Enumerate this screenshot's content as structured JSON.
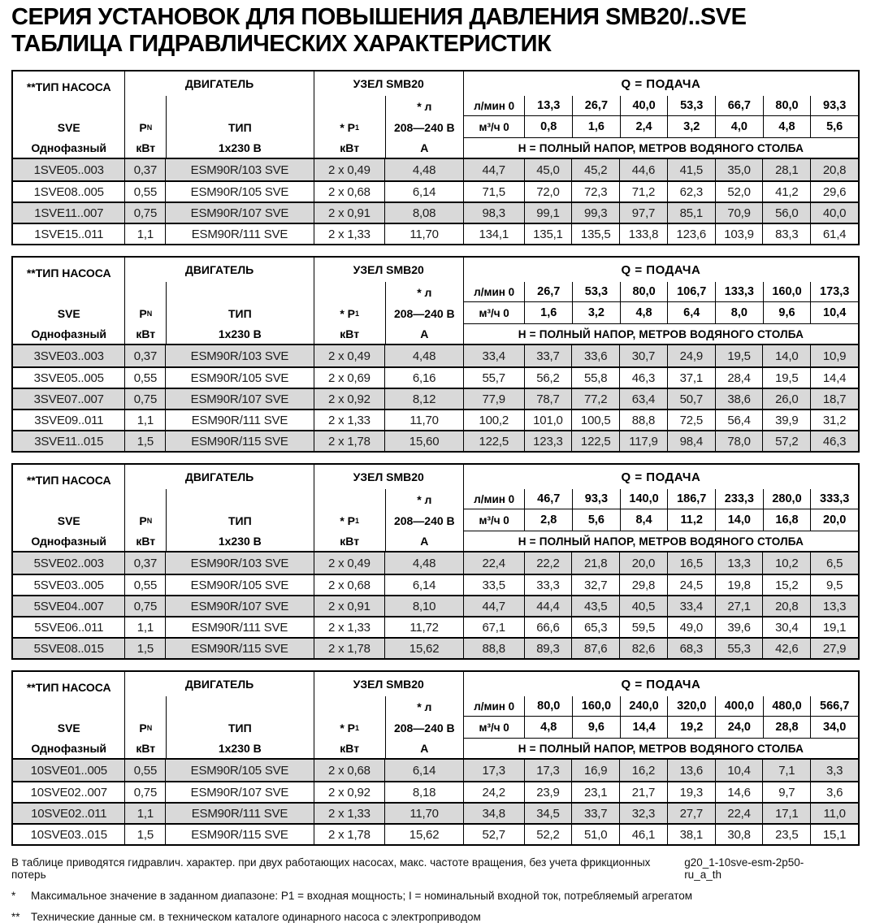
{
  "title": {
    "line1": "СЕРИЯ УСТАНОВОК ДЛЯ ПОВЫШЕНИЯ ДАВЛЕНИЯ SMB20/..SVE",
    "line2": "ТАБЛИЦА ГИДРАВЛИЧЕСКИХ ХАРАКТЕРИСТИК"
  },
  "header_labels": {
    "pump_type": "**ТИП НАСОСА",
    "sve": "SVE",
    "single_phase": "Однофазный",
    "motor": "ДВИГАТЕЛЬ",
    "pn_base": "P",
    "pn_sub": "N",
    "kw": "кВт",
    "type": "ТИП",
    "voltage": "1x230  В",
    "smb20": "УЗЕЛ SMB20",
    "p1_base": "* P",
    "p1_sub": "1",
    "current": "* л",
    "voltage_range": "208—240  В",
    "amps": "А",
    "q_title": "Q  = ПОДАЧА",
    "lmin": "л/мин 0",
    "m3h": "м³/ч 0",
    "head_note": "Н  = ПОЛНЫЙ НАПОР, МЕТРОВ ВОДЯНОГО СТОЛБА"
  },
  "tables": [
    {
      "q_lmin": [
        "13,3",
        "26,7",
        "40,0",
        "53,3",
        "66,7",
        "80,0",
        "93,3"
      ],
      "q_m3h": [
        "0,8",
        "1,6",
        "2,4",
        "3,2",
        "4,0",
        "4,8",
        "5,6"
      ],
      "rows": [
        {
          "model": "1SVE05..003",
          "pn": "0,37",
          "motor_type": "ESM90R/103 SVE",
          "p1": "2 x 0,49",
          "amps": "4,48",
          "h": [
            "44,7",
            "45,0",
            "45,2",
            "44,6",
            "41,5",
            "35,0",
            "28,1",
            "20,8"
          ]
        },
        {
          "model": "1SVE08..005",
          "pn": "0,55",
          "motor_type": "ESM90R/105 SVE",
          "p1": "2 x 0,68",
          "amps": "6,14",
          "h": [
            "71,5",
            "72,0",
            "72,3",
            "71,2",
            "62,3",
            "52,0",
            "41,2",
            "29,6"
          ]
        },
        {
          "model": "1SVE11..007",
          "pn": "0,75",
          "motor_type": "ESM90R/107 SVE",
          "p1": "2 x 0,91",
          "amps": "8,08",
          "h": [
            "98,3",
            "99,1",
            "99,3",
            "97,7",
            "85,1",
            "70,9",
            "56,0",
            "40,0"
          ]
        },
        {
          "model": "1SVE15..011",
          "pn": "1,1",
          "motor_type": "ESM90R/111 SVE",
          "p1": "2 x 1,33",
          "amps": "11,70",
          "h": [
            "134,1",
            "135,1",
            "135,5",
            "133,8",
            "123,6",
            "103,9",
            "83,3",
            "61,4"
          ]
        }
      ]
    },
    {
      "q_lmin": [
        "26,7",
        "53,3",
        "80,0",
        "106,7",
        "133,3",
        "160,0",
        "173,3"
      ],
      "q_m3h": [
        "1,6",
        "3,2",
        "4,8",
        "6,4",
        "8,0",
        "9,6",
        "10,4"
      ],
      "rows": [
        {
          "model": "3SVE03..003",
          "pn": "0,37",
          "motor_type": "ESM90R/103 SVE",
          "p1": "2 x 0,49",
          "amps": "4,48",
          "h": [
            "33,4",
            "33,7",
            "33,6",
            "30,7",
            "24,9",
            "19,5",
            "14,0",
            "10,9"
          ]
        },
        {
          "model": "3SVE05..005",
          "pn": "0,55",
          "motor_type": "ESM90R/105 SVE",
          "p1": "2 x 0,69",
          "amps": "6,16",
          "h": [
            "55,7",
            "56,2",
            "55,8",
            "46,3",
            "37,1",
            "28,4",
            "19,5",
            "14,4"
          ]
        },
        {
          "model": "3SVE07..007",
          "pn": "0,75",
          "motor_type": "ESM90R/107 SVE",
          "p1": "2 x 0,92",
          "amps": "8,12",
          "h": [
            "77,9",
            "78,7",
            "77,2",
            "63,4",
            "50,7",
            "38,6",
            "26,0",
            "18,7"
          ]
        },
        {
          "model": "3SVE09..011",
          "pn": "1,1",
          "motor_type": "ESM90R/111 SVE",
          "p1": "2 x 1,33",
          "amps": "11,70",
          "h": [
            "100,2",
            "101,0",
            "100,5",
            "88,8",
            "72,5",
            "56,4",
            "39,9",
            "31,2"
          ]
        },
        {
          "model": "3SVE11..015",
          "pn": "1,5",
          "motor_type": "ESM90R/115 SVE",
          "p1": "2 x 1,78",
          "amps": "15,60",
          "h": [
            "122,5",
            "123,3",
            "122,5",
            "117,9",
            "98,4",
            "78,0",
            "57,2",
            "46,3"
          ]
        }
      ]
    },
    {
      "q_lmin": [
        "46,7",
        "93,3",
        "140,0",
        "186,7",
        "233,3",
        "280,0",
        "333,3"
      ],
      "q_m3h": [
        "2,8",
        "5,6",
        "8,4",
        "11,2",
        "14,0",
        "16,8",
        "20,0"
      ],
      "rows": [
        {
          "model": "5SVE02..003",
          "pn": "0,37",
          "motor_type": "ESM90R/103 SVE",
          "p1": "2 x 0,49",
          "amps": "4,48",
          "h": [
            "22,4",
            "22,2",
            "21,8",
            "20,0",
            "16,5",
            "13,3",
            "10,2",
            "6,5"
          ]
        },
        {
          "model": "5SVE03..005",
          "pn": "0,55",
          "motor_type": "ESM90R/105 SVE",
          "p1": "2 x 0,68",
          "amps": "6,14",
          "h": [
            "33,5",
            "33,3",
            "32,7",
            "29,8",
            "24,5",
            "19,8",
            "15,2",
            "9,5"
          ]
        },
        {
          "model": "5SVE04..007",
          "pn": "0,75",
          "motor_type": "ESM90R/107 SVE",
          "p1": "2 x 0,91",
          "amps": "8,10",
          "h": [
            "44,7",
            "44,4",
            "43,5",
            "40,5",
            "33,4",
            "27,1",
            "20,8",
            "13,3"
          ]
        },
        {
          "model": "5SVE06..011",
          "pn": "1,1",
          "motor_type": "ESM90R/111 SVE",
          "p1": "2 x 1,33",
          "amps": "11,72",
          "h": [
            "67,1",
            "66,6",
            "65,3",
            "59,5",
            "49,0",
            "39,6",
            "30,4",
            "19,1"
          ]
        },
        {
          "model": "5SVE08..015",
          "pn": "1,5",
          "motor_type": "ESM90R/115 SVE",
          "p1": "2 x 1,78",
          "amps": "15,62",
          "h": [
            "88,8",
            "89,3",
            "87,6",
            "82,6",
            "68,3",
            "55,3",
            "42,6",
            "27,9"
          ]
        }
      ]
    },
    {
      "q_lmin": [
        "80,0",
        "160,0",
        "240,0",
        "320,0",
        "400,0",
        "480,0",
        "566,7"
      ],
      "q_m3h": [
        "4,8",
        "9,6",
        "14,4",
        "19,2",
        "24,0",
        "28,8",
        "34,0"
      ],
      "rows": [
        {
          "model": "10SVE01..005",
          "pn": "0,55",
          "motor_type": "ESM90R/105 SVE",
          "p1": "2 x 0,68",
          "amps": "6,14",
          "h": [
            "17,3",
            "17,3",
            "16,9",
            "16,2",
            "13,6",
            "10,4",
            "7,1",
            "3,3"
          ]
        },
        {
          "model": "10SVE02..007",
          "pn": "0,75",
          "motor_type": "ESM90R/107 SVE",
          "p1": "2 x 0,92",
          "amps": "8,18",
          "h": [
            "24,2",
            "23,9",
            "23,1",
            "21,7",
            "19,3",
            "14,6",
            "9,7",
            "3,6"
          ]
        },
        {
          "model": "10SVE02..011",
          "pn": "1,1",
          "motor_type": "ESM90R/111 SVE",
          "p1": "2 x 1,33",
          "amps": "11,70",
          "h": [
            "34,8",
            "34,5",
            "33,7",
            "32,3",
            "27,7",
            "22,4",
            "17,1",
            "11,0"
          ]
        },
        {
          "model": "10SVE03..015",
          "pn": "1,5",
          "motor_type": "ESM90R/115 SVE",
          "p1": "2 x 1,78",
          "amps": "15,62",
          "h": [
            "52,7",
            "52,2",
            "51,0",
            "46,1",
            "38,1",
            "30,8",
            "23,5",
            "15,1"
          ]
        }
      ]
    }
  ],
  "footnotes": {
    "general": "В таблице приводятся гидравлич. характер. при двух работающих насосах, макс. частоте вращения, без учета фрикционных потерь",
    "doc_code": "g20_1-10sve-esm-2p50-ru_a_th",
    "notes": [
      {
        "marker": "*",
        "text": "Максимальное значение в заданном диапазоне: Р1 = входная мощность; I = номинальный входной ток, потребляемый агрегатом"
      },
      {
        "marker": "**",
        "text": "Технические данные см. в техническом каталоге одинарного насоса с электроприводом"
      }
    ]
  }
}
